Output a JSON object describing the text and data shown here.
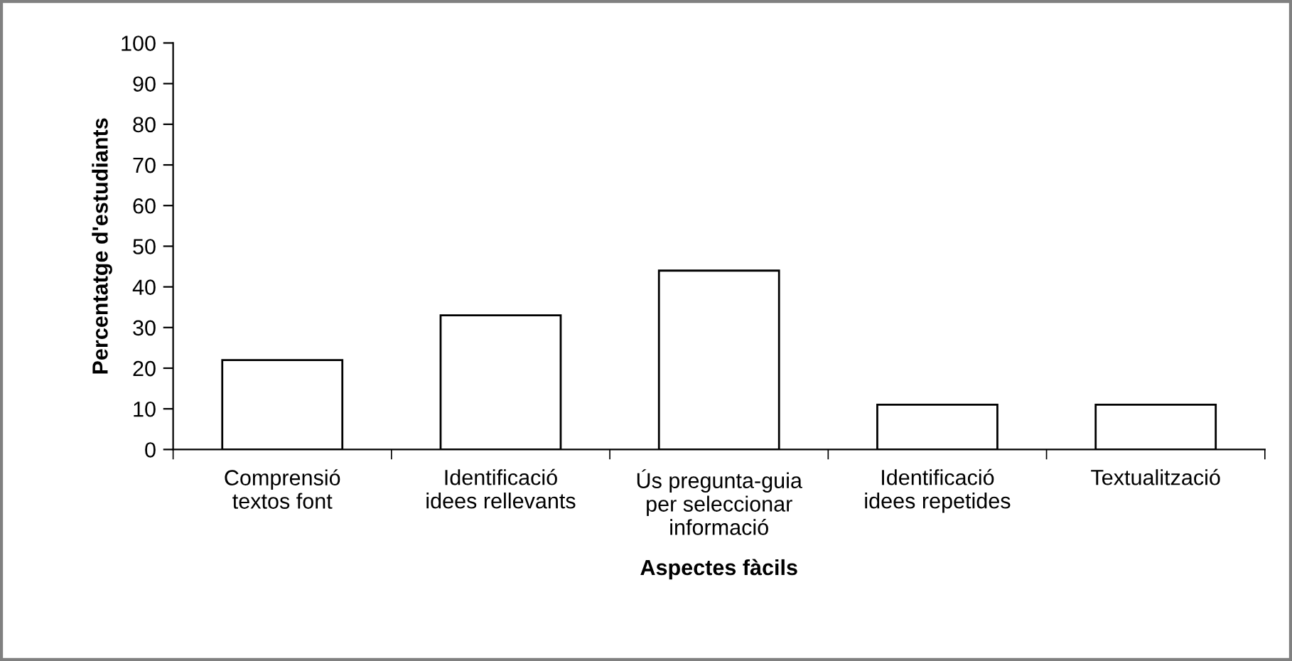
{
  "chart_data": {
    "type": "bar",
    "xlabel": "Aspectes fàcils",
    "ylabel": "Percentatge d'estudiants",
    "categories": [
      "Comprensió\ntextos font",
      "Identificació\nidees rellevants",
      "Ús pregunta-guia\nper seleccionar\ninformació",
      "Identificació\nidees repetides",
      "Textualització"
    ],
    "values": [
      22,
      33,
      44,
      11,
      11
    ],
    "color": "#ffffff",
    "ylim": [
      0,
      100
    ],
    "yticks": [
      0,
      10,
      20,
      30,
      40,
      50,
      60,
      70,
      80,
      90,
      100
    ],
    "grid": false,
    "legend": false
  }
}
